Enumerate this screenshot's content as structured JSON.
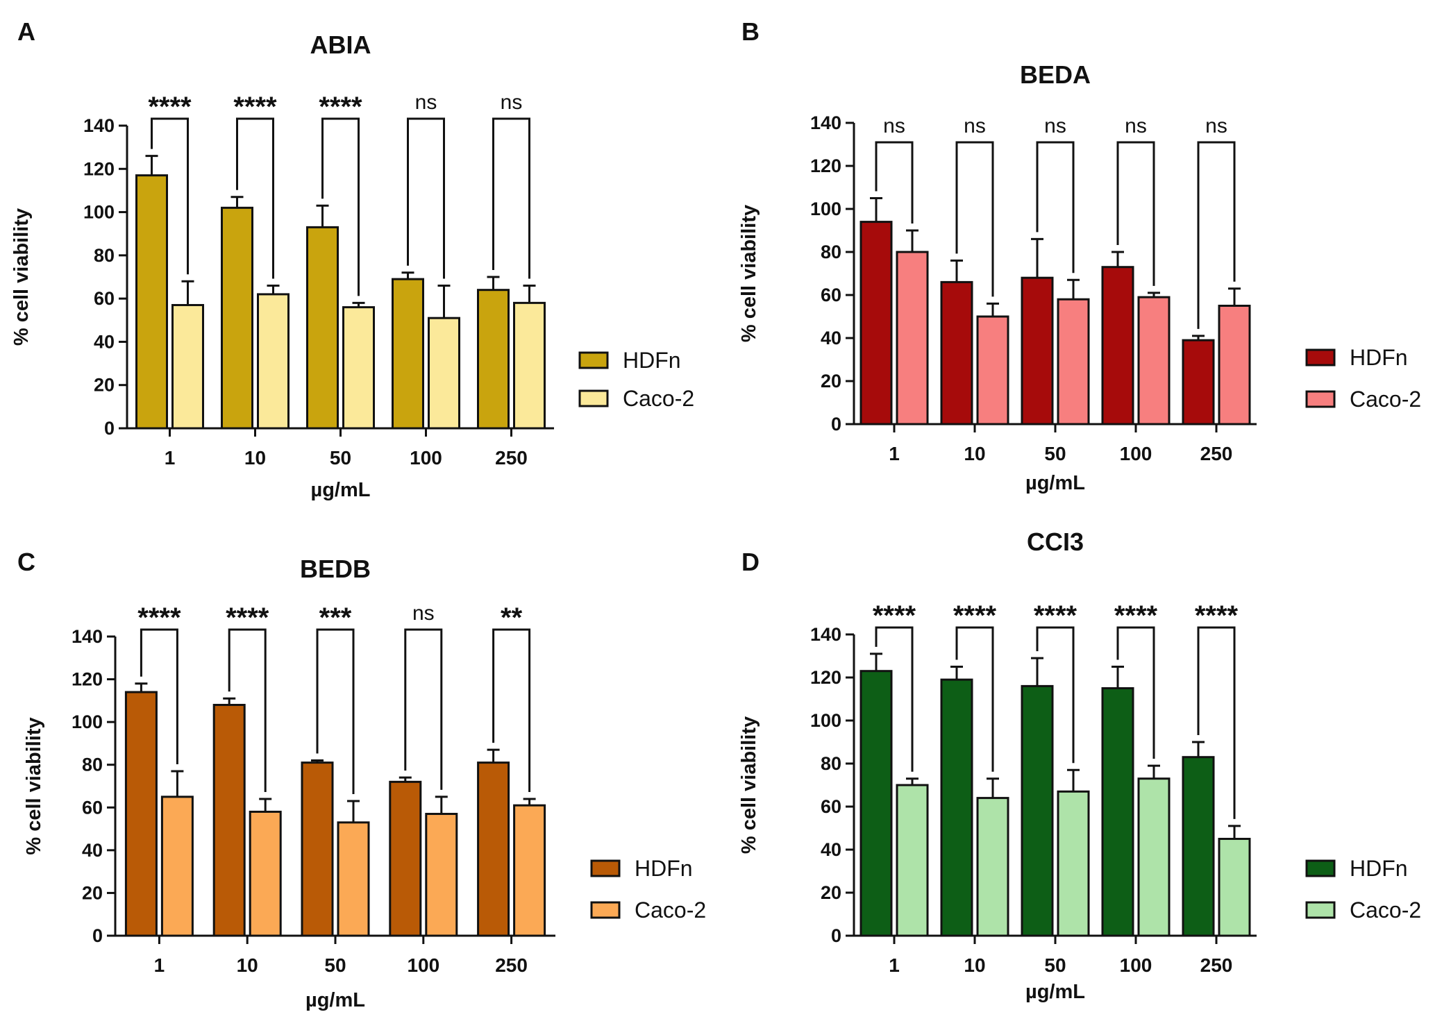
{
  "chart_data": [
    {
      "type": "bar",
      "panel": "A",
      "title": "ABIA",
      "xlabel": "µg/mL",
      "ylabel": "% cell viability",
      "ylim": [
        0,
        140
      ],
      "yticks": [
        0,
        20,
        40,
        60,
        80,
        100,
        120,
        140
      ],
      "categories": [
        "1",
        "10",
        "50",
        "100",
        "250"
      ],
      "series": [
        {
          "name": "HDFn",
          "color": "#c9a40e",
          "values": [
            117,
            102,
            93,
            69,
            64
          ],
          "errors": [
            9,
            5,
            10,
            3,
            6
          ]
        },
        {
          "name": "Caco-2",
          "color": "#fbe99a",
          "values": [
            57,
            62,
            56,
            51,
            58
          ],
          "errors": [
            11,
            4,
            2,
            15,
            8
          ]
        }
      ],
      "significance": [
        "****",
        "****",
        "****",
        "ns",
        "ns"
      ],
      "legend": "right"
    },
    {
      "type": "bar",
      "panel": "B",
      "title": "BEDA",
      "xlabel": "µg/mL",
      "ylabel": "% cell viability",
      "ylim": [
        0,
        140
      ],
      "yticks": [
        0,
        20,
        40,
        60,
        80,
        100,
        120,
        140
      ],
      "categories": [
        "1",
        "10",
        "50",
        "100",
        "250"
      ],
      "series": [
        {
          "name": "HDFn",
          "color": "#a60b0b",
          "values": [
            94,
            66,
            68,
            73,
            39
          ],
          "errors": [
            11,
            10,
            18,
            7,
            2
          ]
        },
        {
          "name": "Caco-2",
          "color": "#f77f7f",
          "values": [
            80,
            50,
            58,
            59,
            55
          ],
          "errors": [
            10,
            6,
            9,
            2,
            8
          ]
        }
      ],
      "significance": [
        "ns",
        "ns",
        "ns",
        "ns",
        "ns"
      ],
      "legend": "right"
    },
    {
      "type": "bar",
      "panel": "C",
      "title": "BEDB",
      "xlabel": "µg/mL",
      "ylabel": "% cell viability",
      "ylim": [
        0,
        140
      ],
      "yticks": [
        0,
        20,
        40,
        60,
        80,
        100,
        120,
        140
      ],
      "categories": [
        "1",
        "10",
        "50",
        "100",
        "250"
      ],
      "series": [
        {
          "name": "HDFn",
          "color": "#b95a06",
          "values": [
            114,
            108,
            81,
            72,
            81
          ],
          "errors": [
            4,
            3,
            1,
            2,
            6
          ]
        },
        {
          "name": "Caco-2",
          "color": "#fba955",
          "values": [
            65,
            58,
            53,
            57,
            61
          ],
          "errors": [
            12,
            6,
            10,
            8,
            3
          ]
        }
      ],
      "significance": [
        "****",
        "****",
        "***",
        "ns",
        "**"
      ],
      "legend": "right"
    },
    {
      "type": "bar",
      "panel": "D",
      "title": "CCI3",
      "xlabel": "µg/mL",
      "ylabel": "% cell viability",
      "ylim": [
        0,
        140
      ],
      "yticks": [
        0,
        20,
        40,
        60,
        80,
        100,
        120,
        140
      ],
      "categories": [
        "1",
        "10",
        "50",
        "100",
        "250"
      ],
      "series": [
        {
          "name": "HDFn",
          "color": "#0d5e16",
          "values": [
            123,
            119,
            116,
            115,
            83
          ],
          "errors": [
            8,
            6,
            13,
            10,
            7
          ]
        },
        {
          "name": "Caco-2",
          "color": "#aee3a9",
          "values": [
            70,
            64,
            67,
            73,
            45
          ],
          "errors": [
            3,
            9,
            10,
            6,
            6
          ]
        }
      ],
      "significance": [
        "****",
        "****",
        "****",
        "****",
        "****"
      ],
      "legend": "right"
    }
  ]
}
